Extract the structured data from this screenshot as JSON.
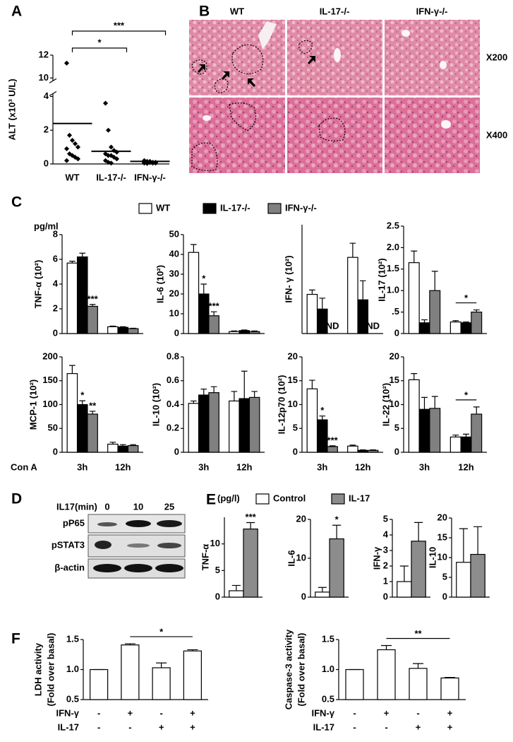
{
  "panel_labels": [
    "A",
    "B",
    "C",
    "D",
    "E",
    "F"
  ],
  "histology": {
    "columns": [
      "WT",
      "IL-17-/-",
      "IFN-γ-/-"
    ],
    "rows": [
      "X200",
      "X400"
    ]
  },
  "blot": {
    "treatment": "IL17(min)",
    "lanes": [
      "0",
      "10",
      "25"
    ],
    "rows": [
      "pP65",
      "pSTAT3",
      "β-actin"
    ]
  },
  "panel_c": {
    "unit": "pg/ml",
    "xlabel": "Con A"
  },
  "panel_e": {
    "unit": "(pg/l)"
  },
  "legends": {
    "C": [
      {
        "name": "WT",
        "color": "#ffffff"
      },
      {
        "name": "IL-17-/-",
        "color": "#000000"
      },
      {
        "name": "IFN-γ-/-",
        "color": "#808080"
      }
    ],
    "E": [
      {
        "name": "Control",
        "color": "#ffffff"
      },
      {
        "name": "IL-17",
        "color": "#8c8c8c"
      }
    ]
  },
  "chart_data": [
    {
      "type": "scatter",
      "ylabel": "ALT (x10³ U/L)",
      "categories": [
        "WT",
        "IL-17-/-",
        "IFN-γ-/-"
      ],
      "values": [
        [
          11.3,
          1.7,
          1.4,
          1.2,
          1.0,
          0.9,
          0.6,
          0.5,
          0.4,
          0.3,
          0.2
        ],
        [
          3.6,
          2.0,
          1.0,
          0.8,
          0.7,
          0.6,
          0.5,
          0.5,
          0.4,
          0.3,
          0.2,
          0.1,
          0.05
        ],
        [
          0.2,
          0.15,
          0.15,
          0.1,
          0.1,
          0.1,
          0.08,
          0.08,
          0.05,
          0.05,
          0.05,
          0.03
        ]
      ],
      "means": [
        2.4,
        0.75,
        0.15
      ],
      "color": "#000000",
      "ylim": [
        0,
        12
      ],
      "axis_break": [
        4,
        10
      ],
      "yticks": [
        0,
        2,
        4,
        10,
        12
      ],
      "annotations": [
        {
          "text": "*",
          "span": [
            0,
            1
          ]
        },
        {
          "text": "***",
          "span": [
            0,
            2
          ]
        }
      ]
    },
    {
      "type": "bar",
      "ylabel": "TNF-α (10²)",
      "ylim": [
        0,
        8
      ],
      "yticks": [
        0,
        2,
        4,
        6,
        8
      ],
      "series": [
        {
          "values": [
            5.7,
            0.55
          ],
          "errors": [
            0.15,
            0.05
          ]
        },
        {
          "values": [
            6.2,
            0.5
          ],
          "errors": [
            0.3,
            0.05
          ]
        },
        {
          "values": [
            2.2,
            0.4
          ],
          "errors": [
            0.15,
            0.03
          ]
        }
      ],
      "annotations": [
        {
          "text": "***",
          "series": 2,
          "category": 0
        }
      ]
    },
    {
      "type": "bar",
      "ylabel": "IL-6 (10²)",
      "ylim": [
        0,
        50
      ],
      "yticks": [
        0,
        10,
        20,
        30,
        40,
        50
      ],
      "series": [
        {
          "values": [
            41,
            1.0
          ],
          "errors": [
            4,
            0.3
          ]
        },
        {
          "values": [
            20,
            1.5
          ],
          "errors": [
            5,
            0.3
          ]
        },
        {
          "values": [
            9,
            1.0
          ],
          "errors": [
            2,
            0.3
          ]
        }
      ],
      "annotations": [
        {
          "text": "*",
          "series": 1,
          "category": 0
        },
        {
          "text": "***",
          "series": 2,
          "category": 0
        }
      ]
    },
    {
      "type": "bar",
      "ylabel": "IFN- γ (10²)",
      "ylim": [
        0,
        20
      ],
      "series": [
        {
          "values": [
            7.2,
            14
          ],
          "errors": [
            0.8,
            2.6
          ]
        },
        {
          "values": [
            4.5,
            6.2
          ],
          "errors": [
            2,
            3.5
          ]
        },
        {
          "values": [
            null,
            null
          ],
          "errors": [
            null,
            null
          ]
        }
      ],
      "annotations": [
        {
          "text": "ND",
          "series": 2,
          "category": 0
        },
        {
          "text": "ND",
          "series": 2,
          "category": 1
        }
      ]
    },
    {
      "type": "bar",
      "ylabel": "IL-17 (10²)",
      "ylim": [
        0,
        2.5
      ],
      "yticks": [
        0,
        {
          "value": 0.5,
          "label": ".5"
        },
        {
          "value": 1,
          "label": "1.0"
        },
        1.5,
        {
          "value": 2,
          "label": "2.0"
        },
        2.5
      ],
      "series": [
        {
          "values": [
            1.65,
            0.27
          ],
          "errors": [
            0.27,
            0.03
          ]
        },
        {
          "values": [
            0.25,
            0.25
          ],
          "errors": [
            0.07,
            0.02
          ]
        },
        {
          "values": [
            1.0,
            0.5
          ],
          "errors": [
            0.45,
            0.05
          ]
        }
      ],
      "annotations": [
        {
          "text": "*",
          "category": 1,
          "span": [
            0,
            2
          ]
        }
      ]
    },
    {
      "type": "bar",
      "ylabel": "MCP-1 (10²)",
      "categories": [
        "3h",
        "12h"
      ],
      "ylim": [
        0,
        200
      ],
      "yticks": [
        0,
        50,
        100,
        150,
        200
      ],
      "series": [
        {
          "values": [
            165,
            17
          ],
          "errors": [
            17,
            4
          ]
        },
        {
          "values": [
            100,
            13
          ],
          "errors": [
            8,
            3
          ]
        },
        {
          "values": [
            80,
            14
          ],
          "errors": [
            6,
            2
          ]
        }
      ],
      "annotations": [
        {
          "text": "*",
          "series": 1,
          "category": 0
        },
        {
          "text": "**",
          "series": 2,
          "category": 0
        }
      ]
    },
    {
      "type": "bar",
      "ylabel": "IL-10 (10²)",
      "categories": [
        "3h",
        "12h"
      ],
      "ylim": [
        0,
        0.8
      ],
      "yticks": [
        0,
        0.2,
        0.4,
        0.6,
        0.8
      ],
      "series": [
        {
          "values": [
            0.41,
            0.43
          ],
          "errors": [
            0.02,
            0.08
          ]
        },
        {
          "values": [
            0.48,
            0.45
          ],
          "errors": [
            0.05,
            0.23
          ]
        },
        {
          "values": [
            0.5,
            0.46
          ],
          "errors": [
            0.05,
            0.05
          ]
        }
      ]
    },
    {
      "type": "bar",
      "ylabel": "IL-12p70 (10²)",
      "categories": [
        "3h",
        "12h"
      ],
      "ylim": [
        0,
        20
      ],
      "yticks": [
        0,
        5,
        10,
        15,
        20
      ],
      "series": [
        {
          "values": [
            13.3,
            1.3
          ],
          "errors": [
            1.8,
            0.2
          ]
        },
        {
          "values": [
            6.8,
            0.4
          ],
          "errors": [
            0.8,
            0.1
          ]
        },
        {
          "values": [
            1.2,
            0.4
          ],
          "errors": [
            0.15,
            0.1
          ]
        }
      ],
      "annotations": [
        {
          "text": "*",
          "series": 1,
          "category": 0
        },
        {
          "text": "***",
          "series": 2,
          "category": 0
        }
      ]
    },
    {
      "type": "bar",
      "ylabel": "IL-22 (10²)",
      "categories": [
        "3h",
        "12h"
      ],
      "ylim": [
        0,
        20
      ],
      "yticks": [
        0,
        5,
        10,
        15,
        20
      ],
      "series": [
        {
          "values": [
            15.2,
            3.2
          ],
          "errors": [
            1.3,
            0.4
          ]
        },
        {
          "values": [
            9,
            3.2
          ],
          "errors": [
            2.5,
            0.6
          ]
        },
        {
          "values": [
            9.2,
            8
          ],
          "errors": [
            2.5,
            1.5
          ]
        }
      ],
      "annotations": [
        {
          "text": "*",
          "category": 1,
          "span": [
            0,
            2
          ]
        }
      ]
    },
    {
      "type": "bar",
      "ylabel": "TNF-α",
      "ylim": [
        0,
        15
      ],
      "yticks": [
        0,
        5,
        10
      ],
      "series": [
        {
          "values": [
            1.2
          ],
          "errors": [
            1.0
          ]
        },
        {
          "values": [
            12.8
          ],
          "errors": [
            1.2
          ]
        }
      ],
      "annotations": [
        {
          "text": "***",
          "series": 1,
          "category": 0
        }
      ]
    },
    {
      "type": "bar",
      "ylabel": "IL-6",
      "ylim": [
        0,
        20
      ],
      "yticks": [
        0,
        10,
        20
      ],
      "series": [
        {
          "values": [
            1.3
          ],
          "errors": [
            1.2
          ]
        },
        {
          "values": [
            15
          ],
          "errors": [
            3.5
          ]
        }
      ],
      "annotations": [
        {
          "text": "*",
          "series": 1,
          "category": 0
        }
      ]
    },
    {
      "type": "bar",
      "ylabel": "IFN-γ",
      "ylim": [
        0,
        5
      ],
      "yticks": [
        0,
        1,
        2,
        3,
        4,
        5
      ],
      "series": [
        {
          "values": [
            1.0
          ],
          "errors": [
            1.0
          ]
        },
        {
          "values": [
            3.6
          ],
          "errors": [
            1.2
          ]
        }
      ]
    },
    {
      "type": "bar",
      "ylabel": "IL-10",
      "ylim": [
        0,
        20
      ],
      "yticks": [
        0,
        5,
        10,
        15,
        20
      ],
      "series": [
        {
          "values": [
            8.8
          ],
          "errors": [
            8.5
          ]
        },
        {
          "values": [
            10.8
          ],
          "errors": [
            7
          ]
        }
      ]
    },
    {
      "type": "bar",
      "ylabel": [
        "LDH activity",
        "(Fold over basal)"
      ],
      "values": [
        1.0,
        1.41,
        1.03,
        1.31
      ],
      "errors": [
        0,
        0.02,
        0.08,
        0.02
      ],
      "color": "#ffffff",
      "ylim": [
        0.5,
        1.5
      ],
      "yticks": [
        0.5,
        {
          "value": 1,
          "label": "1.0"
        },
        1.5
      ],
      "conditions": [
        {
          "name": "IFN-γ",
          "levels": [
            "-",
            "+",
            "-",
            "+"
          ]
        },
        {
          "name": "IL-17",
          "levels": [
            "-",
            "-",
            "+",
            "+"
          ]
        }
      ],
      "annotations": [
        {
          "text": "*",
          "span": [
            1,
            3
          ]
        }
      ]
    },
    {
      "type": "bar",
      "ylabel": [
        "Caspase-3 activity",
        "(Fold over basal)"
      ],
      "values": [
        1.0,
        1.33,
        1.02,
        0.86
      ],
      "errors": [
        0,
        0.07,
        0.08,
        0.01
      ],
      "color": "#ffffff",
      "ylim": [
        0.5,
        1.5
      ],
      "yticks": [
        0.5,
        {
          "value": 1,
          "label": "1.0"
        },
        1.5
      ],
      "conditions": [
        {
          "name": "IFN-γ",
          "levels": [
            "-",
            "+",
            "-",
            "+"
          ]
        },
        {
          "name": "IL-17",
          "levels": [
            "-",
            "-",
            "+",
            "+"
          ]
        }
      ],
      "annotations": [
        {
          "text": "**",
          "span": [
            1,
            3
          ]
        }
      ]
    }
  ]
}
